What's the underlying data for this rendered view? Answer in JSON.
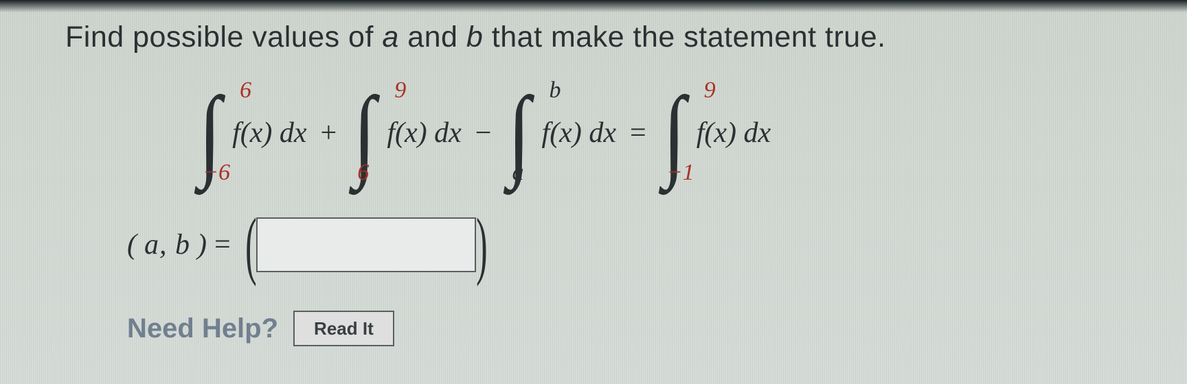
{
  "question": {
    "prefix": "Find possible values of ",
    "var_a": "a",
    "mid": " and ",
    "var_b": "b",
    "suffix": " that make the statement true."
  },
  "integrand_text": "f(x) dx",
  "eq": {
    "term1": {
      "lower": "−6",
      "upper": "6"
    },
    "op1": "+",
    "term2": {
      "lower": "6",
      "upper": "9"
    },
    "op2": "−",
    "term3": {
      "lower": "a",
      "upper": "b"
    },
    "equals": "=",
    "term4": {
      "lower": "−1",
      "upper": "9"
    }
  },
  "colors": {
    "numeric_limit": "#a83228",
    "var_limit": "#2b3033",
    "text": "#2b3033",
    "need_help": "#717f8f",
    "button_bg": "#dedfde",
    "input_border": "#5a5f62",
    "page_bg": "#d3d9d3"
  },
  "fontsizes": {
    "question_pt": 32,
    "integral_sign_pt": 110,
    "limit_pt": 25,
    "integrand_pt": 31,
    "answer_label_pt": 31,
    "paren_pt": 80,
    "need_help_pt": 30,
    "button_pt": 20
  },
  "answer": {
    "label_open": "(",
    "label_ab": "a, b",
    "label_close": ")",
    "equals": "=",
    "value": ""
  },
  "help": {
    "label": "Need Help?",
    "button": "Read It"
  }
}
